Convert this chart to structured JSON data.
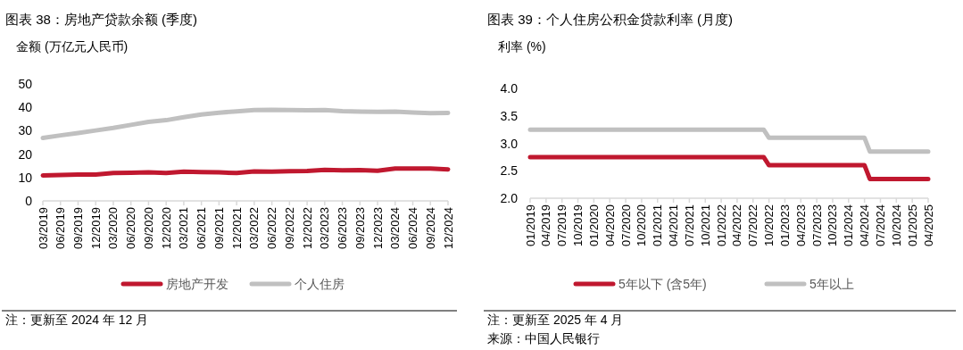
{
  "chart_data": [
    {
      "type": "line",
      "title": "图表 38：房地产贷款余额 (季度)",
      "ylabel": "金额 (万亿元人民币)",
      "categories": [
        "03/2019",
        "06/2019",
        "09/2019",
        "12/2019",
        "03/2020",
        "06/2020",
        "09/2020",
        "12/2020",
        "03/2021",
        "06/2021",
        "09/2021",
        "12/2021",
        "03/2022",
        "06/2022",
        "09/2022",
        "12/2022",
        "03/2023",
        "06/2023",
        "09/2023",
        "12/2023",
        "03/2024",
        "06/2024",
        "09/2024",
        "12/2024"
      ],
      "series": [
        {
          "name": "房地产开发",
          "color": "#c0182f",
          "values": [
            10.9,
            11.1,
            11.3,
            11.3,
            11.9,
            12.0,
            12.2,
            11.9,
            12.5,
            12.3,
            12.2,
            11.9,
            12.6,
            12.5,
            12.7,
            12.8,
            13.3,
            13.1,
            13.2,
            12.9,
            13.8,
            13.8,
            13.8,
            13.5
          ]
        },
        {
          "name": "个人住房",
          "color": "#c0c0c0",
          "values": [
            26.9,
            28.0,
            29.0,
            30.1,
            31.2,
            32.5,
            33.8,
            34.5,
            35.8,
            36.9,
            37.7,
            38.3,
            38.8,
            38.9,
            38.8,
            38.7,
            38.8,
            38.4,
            38.2,
            38.1,
            38.2,
            37.8,
            37.5,
            37.6
          ]
        }
      ],
      "ylim": [
        0,
        50
      ],
      "yticks": [
        0,
        10,
        20,
        30,
        40,
        50
      ],
      "legend": "bottom",
      "annotations": [
        "注：更新至 2024 年 12 月"
      ]
    },
    {
      "type": "line",
      "title": "图表 39：个人住房公积金贷款利率 (月度)",
      "ylabel": "利率 (%)",
      "categories": [
        "01/2019",
        null,
        null,
        "04/2019",
        null,
        null,
        "07/2019",
        null,
        null,
        "10/2019",
        null,
        null,
        "01/2020",
        null,
        null,
        "04/2020",
        null,
        null,
        "07/2020",
        null,
        null,
        "10/2020",
        null,
        null,
        "01/2021",
        null,
        null,
        "04/2021",
        null,
        null,
        "07/2021",
        null,
        null,
        "10/2021",
        null,
        null,
        "01/2022",
        null,
        null,
        "04/2022",
        null,
        null,
        "07/2022",
        null,
        null,
        "10/2022",
        null,
        null,
        "01/2023",
        null,
        null,
        "04/2023",
        null,
        null,
        "07/2023",
        null,
        null,
        "10/2023",
        null,
        null,
        "01/2024",
        null,
        null,
        "04/2024",
        null,
        null,
        "07/2024",
        null,
        null,
        "10/2024",
        null,
        null,
        "01/2025",
        null,
        null,
        "04/2025"
      ],
      "series": [
        {
          "name": "5年以下 (含5年)",
          "color": "#c0182f",
          "values": [
            2.75,
            2.75,
            2.75,
            2.75,
            2.75,
            2.75,
            2.75,
            2.75,
            2.75,
            2.75,
            2.75,
            2.75,
            2.75,
            2.75,
            2.75,
            2.75,
            2.75,
            2.75,
            2.75,
            2.75,
            2.75,
            2.75,
            2.75,
            2.75,
            2.75,
            2.75,
            2.75,
            2.75,
            2.75,
            2.75,
            2.75,
            2.75,
            2.75,
            2.75,
            2.75,
            2.75,
            2.75,
            2.75,
            2.75,
            2.75,
            2.75,
            2.75,
            2.75,
            2.75,
            2.75,
            2.6,
            2.6,
            2.6,
            2.6,
            2.6,
            2.6,
            2.6,
            2.6,
            2.6,
            2.6,
            2.6,
            2.6,
            2.6,
            2.6,
            2.6,
            2.6,
            2.6,
            2.6,
            2.6,
            2.35,
            2.35,
            2.35,
            2.35,
            2.35,
            2.35,
            2.35,
            2.35,
            2.35,
            2.35,
            2.35,
            2.35
          ]
        },
        {
          "name": "5年以上",
          "color": "#c0c0c0",
          "values": [
            3.25,
            3.25,
            3.25,
            3.25,
            3.25,
            3.25,
            3.25,
            3.25,
            3.25,
            3.25,
            3.25,
            3.25,
            3.25,
            3.25,
            3.25,
            3.25,
            3.25,
            3.25,
            3.25,
            3.25,
            3.25,
            3.25,
            3.25,
            3.25,
            3.25,
            3.25,
            3.25,
            3.25,
            3.25,
            3.25,
            3.25,
            3.25,
            3.25,
            3.25,
            3.25,
            3.25,
            3.25,
            3.25,
            3.25,
            3.25,
            3.25,
            3.25,
            3.25,
            3.25,
            3.25,
            3.1,
            3.1,
            3.1,
            3.1,
            3.1,
            3.1,
            3.1,
            3.1,
            3.1,
            3.1,
            3.1,
            3.1,
            3.1,
            3.1,
            3.1,
            3.1,
            3.1,
            3.1,
            3.1,
            2.85,
            2.85,
            2.85,
            2.85,
            2.85,
            2.85,
            2.85,
            2.85,
            2.85,
            2.85,
            2.85,
            2.85
          ]
        }
      ],
      "ylim": [
        2.0,
        4.0
      ],
      "yticks": [
        {
          "value": 2,
          "label": "2.0"
        },
        2.5,
        {
          "value": 3,
          "label": "3.0"
        },
        3.5,
        {
          "value": 4,
          "label": "4.0"
        }
      ],
      "legend": "bottom",
      "annotations": [
        "注：更新至 2025 年 4 月",
        "来源：中国人民银行"
      ]
    }
  ]
}
